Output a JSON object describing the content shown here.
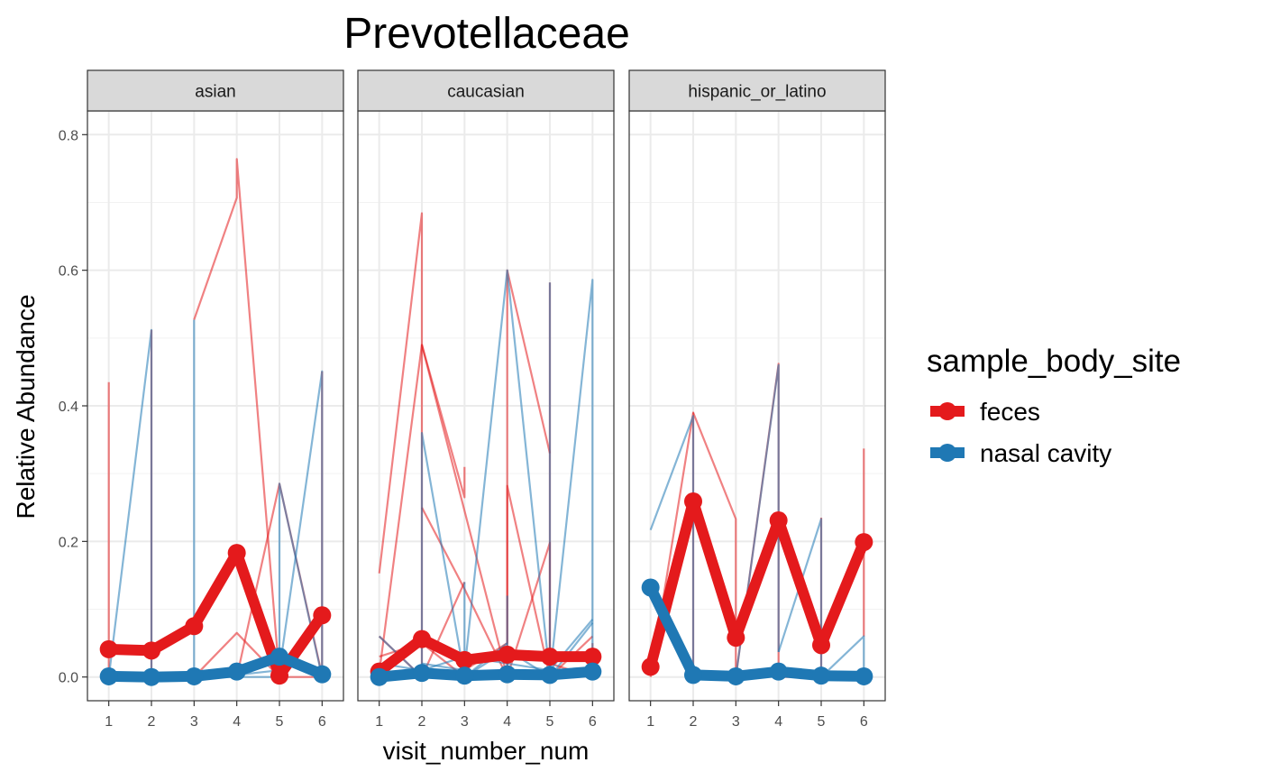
{
  "chart_data": {
    "type": "line",
    "title": "Prevotellaceae",
    "xlabel": "visit_number_num",
    "ylabel": "Relative Abundance",
    "x_ticks": [
      "1",
      "2",
      "3",
      "4",
      "5",
      "6"
    ],
    "y_ticks": [
      "0.0",
      "0.2",
      "0.4",
      "0.6",
      "0.8"
    ],
    "xlim": [
      0.5,
      6.5
    ],
    "ylim": [
      -0.035,
      0.835
    ],
    "grid": true,
    "legend": {
      "title": "sample_body_site",
      "position": "right",
      "entries": [
        {
          "label": "feces",
          "color": "#E41A1C"
        },
        {
          "label": "nasal cavity",
          "color": "#1F78B4"
        }
      ]
    },
    "colors": {
      "feces": "#E41A1C",
      "nasal cavity": "#1F78B4"
    },
    "facets": [
      {
        "name": "asian",
        "mean_series": [
          {
            "name": "feces",
            "x": [
              1,
              2,
              3,
              4,
              5,
              6
            ],
            "y": [
              0.041,
              0.039,
              0.075,
              0.183,
              0.002,
              0.091
            ]
          },
          {
            "name": "nasal cavity",
            "x": [
              1,
              2,
              3,
              4,
              5,
              6
            ],
            "y": [
              0.001,
              0.0,
              0.001,
              0.008,
              0.03,
              0.004
            ]
          }
        ],
        "individual_series": [
          {
            "group": "feces",
            "x": [
              1,
              1
            ],
            "y": [
              0.435,
              0.0
            ]
          },
          {
            "group": "feces",
            "x": [
              2,
              2
            ],
            "y": [
              0.512,
              0.0
            ]
          },
          {
            "group": "feces",
            "x": [
              3,
              4,
              4,
              5,
              6,
              6
            ],
            "y": [
              0.527,
              0.707,
              0.764,
              0.0,
              0.0,
              0.451
            ]
          },
          {
            "group": "feces",
            "x": [
              3,
              4,
              5
            ],
            "y": [
              0.0,
              0.065,
              0.0
            ]
          },
          {
            "group": "feces",
            "x": [
              4,
              5,
              6
            ],
            "y": [
              0.0,
              0.285,
              0.002
            ]
          },
          {
            "group": "nasal cavity",
            "x": [
              1,
              2,
              2
            ],
            "y": [
              0.0,
              0.512,
              0.0
            ]
          },
          {
            "group": "nasal cavity",
            "x": [
              3,
              3,
              4
            ],
            "y": [
              0.527,
              0.0,
              0.0
            ]
          },
          {
            "group": "nasal cavity",
            "x": [
              4,
              5,
              5,
              6
            ],
            "y": [
              0.0,
              0.0,
              0.285,
              0.0
            ]
          },
          {
            "group": "nasal cavity",
            "x": [
              4,
              5,
              6,
              6
            ],
            "y": [
              0.003,
              0.01,
              0.451,
              0.0
            ]
          }
        ]
      },
      {
        "name": "caucasian",
        "mean_series": [
          {
            "name": "feces",
            "x": [
              1,
              2,
              3,
              4,
              5,
              6
            ],
            "y": [
              0.008,
              0.056,
              0.025,
              0.033,
              0.03,
              0.03
            ]
          },
          {
            "name": "nasal cavity",
            "x": [
              1,
              2,
              3,
              4,
              5,
              6
            ],
            "y": [
              0.0,
              0.006,
              0.002,
              0.004,
              0.003,
              0.008
            ]
          }
        ],
        "individual_series": [
          {
            "group": "feces",
            "x": [
              1,
              2,
              2
            ],
            "y": [
              0.153,
              0.684,
              0.0
            ]
          },
          {
            "group": "feces",
            "x": [
              1,
              2,
              3,
              3
            ],
            "y": [
              0.006,
              0.49,
              0.265,
              0.31
            ]
          },
          {
            "group": "feces",
            "x": [
              1,
              2,
              3
            ],
            "y": [
              0.06,
              0.0,
              0.14
            ]
          },
          {
            "group": "feces",
            "x": [
              2,
              3,
              4
            ],
            "y": [
              0.25,
              0.13,
              0.0
            ]
          },
          {
            "group": "feces",
            "x": [
              2,
              4,
              4,
              5
            ],
            "y": [
              0.49,
              0.0,
              0.6,
              0.33
            ]
          },
          {
            "group": "feces",
            "x": [
              1,
              2,
              3
            ],
            "y": [
              0.03,
              0.05,
              0.0
            ]
          },
          {
            "group": "feces",
            "x": [
              3,
              4,
              4,
              5
            ],
            "y": [
              0.01,
              0.05,
              0.282,
              0.0
            ]
          },
          {
            "group": "feces",
            "x": [
              4,
              5,
              5
            ],
            "y": [
              0.0,
              0.198,
              0.0
            ]
          },
          {
            "group": "feces",
            "x": [
              5,
              5,
              6
            ],
            "y": [
              0.582,
              0.0,
              0.06
            ]
          },
          {
            "group": "feces",
            "x": [
              5,
              6,
              6
            ],
            "y": [
              0.02,
              0.0,
              0.05
            ]
          },
          {
            "group": "nasal cavity",
            "x": [
              1,
              2,
              2,
              3
            ],
            "y": [
              0.06,
              0.0,
              0.36,
              0.0
            ]
          },
          {
            "group": "nasal cavity",
            "x": [
              2,
              3,
              4,
              5
            ],
            "y": [
              0.02,
              0.01,
              0.6,
              0.0
            ]
          },
          {
            "group": "nasal cavity",
            "x": [
              3,
              3,
              4
            ],
            "y": [
              0.14,
              0.0,
              0.05
            ]
          },
          {
            "group": "nasal cavity",
            "x": [
              4,
              4,
              5
            ],
            "y": [
              0.12,
              0.0,
              0.01
            ]
          },
          {
            "group": "nasal cavity",
            "x": [
              5,
              5,
              6,
              6
            ],
            "y": [
              0.582,
              0.0,
              0.586,
              0.0
            ]
          },
          {
            "group": "nasal cavity",
            "x": [
              1,
              2,
              3,
              4,
              5,
              6
            ],
            "y": [
              0.02,
              0.01,
              0.03,
              0.02,
              0.01,
              0.085
            ]
          },
          {
            "group": "nasal cavity",
            "x": [
              3,
              4,
              5,
              6
            ],
            "y": [
              0.0,
              0.04,
              0.0,
              0.08
            ]
          }
        ]
      },
      {
        "name": "hispanic_or_latino",
        "mean_series": [
          {
            "name": "feces",
            "x": [
              1,
              2,
              3,
              4,
              5,
              6
            ],
            "y": [
              0.015,
              0.259,
              0.058,
              0.231,
              0.047,
              0.199
            ]
          },
          {
            "name": "nasal cavity",
            "x": [
              1,
              2,
              3,
              4,
              5,
              6
            ],
            "y": [
              0.132,
              0.003,
              0.001,
              0.008,
              0.002,
              0.001
            ]
          }
        ],
        "individual_series": [
          {
            "group": "feces",
            "x": [
              1,
              2,
              2
            ],
            "y": [
              0.0,
              0.39,
              0.0
            ]
          },
          {
            "group": "feces",
            "x": [
              2,
              3,
              3
            ],
            "y": [
              0.39,
              0.233,
              0.0
            ]
          },
          {
            "group": "feces",
            "x": [
              3,
              4,
              4,
              5
            ],
            "y": [
              0.0,
              0.462,
              0.0,
              0.0
            ]
          },
          {
            "group": "feces",
            "x": [
              5,
              5,
              6
            ],
            "y": [
              0.235,
              0.0,
              0.0
            ]
          },
          {
            "group": "feces",
            "x": [
              6,
              6
            ],
            "y": [
              0.337,
              0.06
            ]
          },
          {
            "group": "nasal cavity",
            "x": [
              1,
              2,
              2,
              3
            ],
            "y": [
              0.217,
              0.385,
              0.0,
              0.0
            ]
          },
          {
            "group": "nasal cavity",
            "x": [
              3,
              4,
              4
            ],
            "y": [
              0.0,
              0.46,
              0.037
            ]
          },
          {
            "group": "nasal cavity",
            "x": [
              4,
              5,
              5
            ],
            "y": [
              0.037,
              0.233,
              0.0
            ]
          },
          {
            "group": "nasal cavity",
            "x": [
              5,
              6,
              6
            ],
            "y": [
              0.0,
              0.06,
              0.0
            ]
          }
        ]
      }
    ]
  }
}
